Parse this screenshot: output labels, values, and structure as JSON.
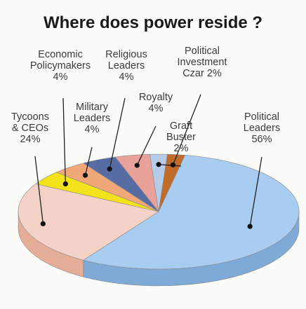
{
  "chart_data": {
    "type": "pie",
    "title": "Where does power reside ?",
    "slices": [
      {
        "name": "Political Leaders",
        "lines": [
          "Political",
          "Leaders",
          "56%"
        ],
        "value": 56,
        "color": "#a9cdf1",
        "side": "#7fa9d6"
      },
      {
        "name": "Tycoons & CEOs",
        "lines": [
          "Tycoons",
          "& CEOs",
          "24%"
        ],
        "value": 24,
        "color": "#f5d2c8",
        "side": "#e3ad98"
      },
      {
        "name": "Economic Policymakers",
        "lines": [
          "Economic",
          "Policymakers",
          "4%"
        ],
        "value": 4,
        "color": "#f2e21a",
        "side": "#c9b90d"
      },
      {
        "name": "Military Leaders",
        "lines": [
          "Military",
          "Leaders",
          "4%"
        ],
        "value": 4,
        "color": "#f0a878",
        "side": "#cc8656"
      },
      {
        "name": "Religious Leaders",
        "lines": [
          "Religious",
          "Leaders",
          "4%"
        ],
        "value": 4,
        "color": "#586ca4",
        "side": "#3d4f83"
      },
      {
        "name": "Royalty",
        "lines": [
          "Royalty",
          "4%"
        ],
        "value": 4,
        "color": "#e8a29a",
        "side": "#c47f77"
      },
      {
        "name": "Graft Buster",
        "lines": [
          "Graft",
          "Buster",
          "2%"
        ],
        "value": 2,
        "color": "#b6cbe8",
        "side": "#8fa6c6"
      },
      {
        "name": "Political Investment Czar",
        "lines": [
          "Political",
          "Investment",
          "Czar 2%"
        ],
        "value": 2,
        "color": "#c26a2a",
        "side": "#94491a"
      }
    ]
  }
}
